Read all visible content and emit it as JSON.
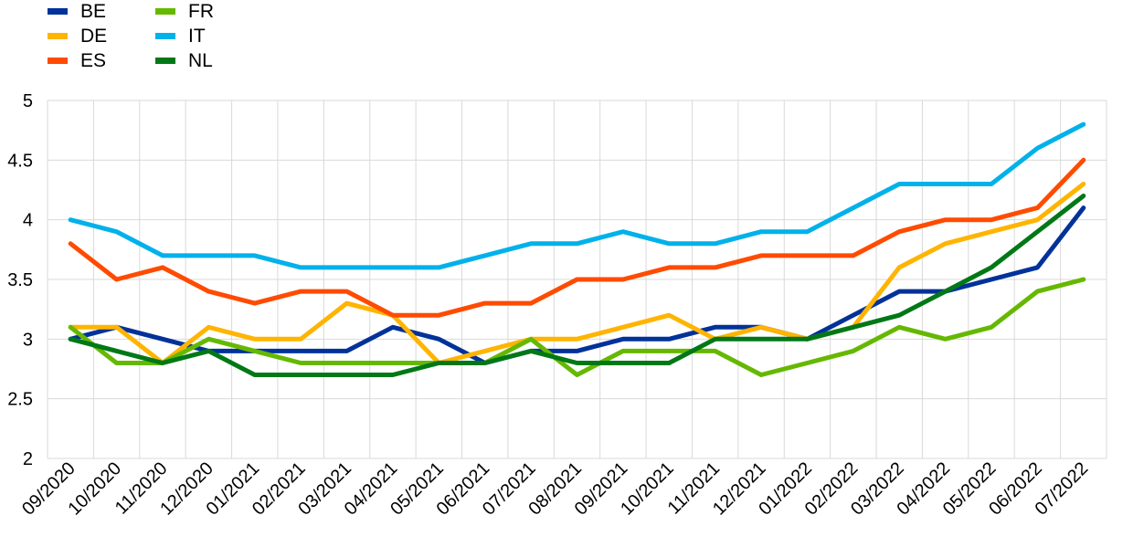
{
  "chart_data": {
    "type": "line",
    "x": [
      "09/2020",
      "10/2020",
      "11/2020",
      "12/2020",
      "01/2021",
      "02/2021",
      "03/2021",
      "04/2021",
      "05/2021",
      "06/2021",
      "07/2021",
      "08/2021",
      "09/2021",
      "10/2021",
      "11/2021",
      "12/2021",
      "01/2022",
      "02/2022",
      "03/2022",
      "04/2022",
      "05/2022",
      "06/2022",
      "07/2022"
    ],
    "ylim": [
      2,
      5
    ],
    "yticks": [
      "2",
      "2.5",
      "3",
      "3.5",
      "4",
      "4.5",
      "5"
    ],
    "grid": true,
    "legend_position": "top-left",
    "series": [
      {
        "name": "BE",
        "color": "#003299",
        "values": [
          3.0,
          3.1,
          3.0,
          2.9,
          2.9,
          2.9,
          2.9,
          3.1,
          3.0,
          2.8,
          2.9,
          2.9,
          3.0,
          3.0,
          3.1,
          3.1,
          3.0,
          3.2,
          3.4,
          3.4,
          3.5,
          3.6,
          4.1
        ]
      },
      {
        "name": "DE",
        "color": "#FFB400",
        "values": [
          3.1,
          3.1,
          2.8,
          3.1,
          3.0,
          3.0,
          3.3,
          3.2,
          2.8,
          2.9,
          3.0,
          3.0,
          3.1,
          3.2,
          3.0,
          3.1,
          3.0,
          3.1,
          3.6,
          3.8,
          3.9,
          4.0,
          4.3
        ]
      },
      {
        "name": "ES",
        "color": "#FF4B00",
        "values": [
          3.8,
          3.5,
          3.6,
          3.4,
          3.3,
          3.4,
          3.4,
          3.2,
          3.2,
          3.3,
          3.3,
          3.5,
          3.5,
          3.6,
          3.6,
          3.7,
          3.7,
          3.7,
          3.9,
          4.0,
          4.0,
          4.1,
          4.5
        ]
      },
      {
        "name": "FR",
        "color": "#65B800",
        "values": [
          3.1,
          2.8,
          2.8,
          3.0,
          2.9,
          2.8,
          2.8,
          2.8,
          2.8,
          2.8,
          3.0,
          2.7,
          2.9,
          2.9,
          2.9,
          2.7,
          2.8,
          2.9,
          3.1,
          3.0,
          3.1,
          3.4,
          3.5
        ]
      },
      {
        "name": "IT",
        "color": "#00B1EA",
        "values": [
          4.0,
          3.9,
          3.7,
          3.7,
          3.7,
          3.6,
          3.6,
          3.6,
          3.6,
          3.7,
          3.8,
          3.8,
          3.9,
          3.8,
          3.8,
          3.9,
          3.9,
          4.1,
          4.3,
          4.3,
          4.3,
          4.6,
          4.8
        ]
      },
      {
        "name": "NL",
        "color": "#007816",
        "values": [
          3.0,
          2.9,
          2.8,
          2.9,
          2.7,
          2.7,
          2.7,
          2.7,
          2.8,
          2.8,
          2.9,
          2.8,
          2.8,
          2.8,
          3.0,
          3.0,
          3.0,
          3.1,
          3.2,
          3.4,
          3.6,
          3.9,
          4.2
        ]
      }
    ]
  }
}
